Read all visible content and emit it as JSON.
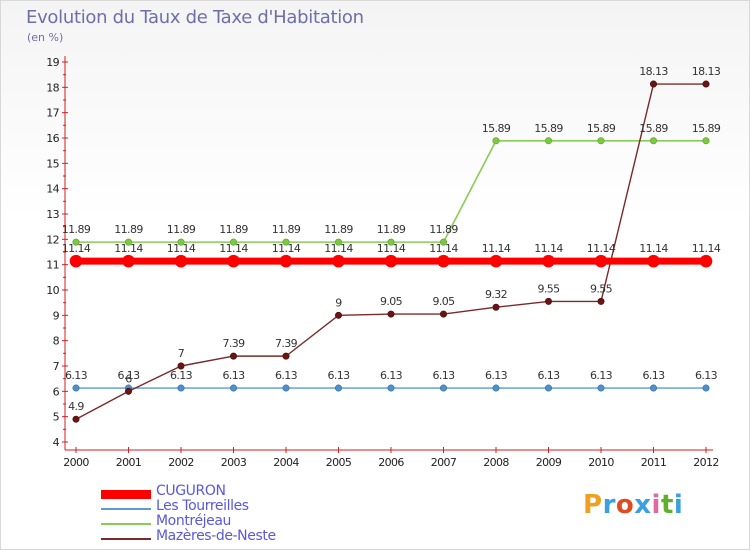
{
  "header": {
    "title": "Evolution du Taux de Taxe d'Habitation",
    "subtitle": "(en %)"
  },
  "logo": {
    "text": "Proxiti",
    "colors": [
      "#f0a020",
      "#3aa0e0",
      "#e04a20",
      "#3aa0e0",
      "#e06aa0",
      "#60b030",
      "#3aa0e0"
    ]
  },
  "chart_data": {
    "type": "line",
    "title": "Evolution du Taux de Taxe d'Habitation",
    "ylabel": "(en %)",
    "xlabel": "",
    "x": [
      "2000",
      "2001",
      "2002",
      "2003",
      "2004",
      "2005",
      "2006",
      "2007",
      "2008",
      "2009",
      "2010",
      "2011",
      "2012"
    ],
    "ylim": [
      4,
      19
    ],
    "yticks": [
      "4",
      "5",
      "6",
      "7",
      "8",
      "9",
      "10",
      "11",
      "12",
      "13",
      "14",
      "15",
      "16",
      "17",
      "18",
      "19"
    ],
    "grid": false,
    "legend_position": "bottom-left",
    "series": [
      {
        "name": "CUGURON",
        "color": "#ff0000",
        "values": [
          11.14,
          11.14,
          11.14,
          11.14,
          11.14,
          11.14,
          11.14,
          11.14,
          11.14,
          11.14,
          11.14,
          11.14,
          11.14
        ],
        "labels": [
          "11.14",
          "11.14",
          "11.14",
          "11.14",
          "11.14",
          "11.14",
          "11.14",
          "11.14",
          "11.14",
          "11.14",
          "11.14",
          "11.14",
          "11.14"
        ]
      },
      {
        "name": "Les Tourreilles",
        "color": "#5b9bd0",
        "values": [
          6.13,
          6.13,
          6.13,
          6.13,
          6.13,
          6.13,
          6.13,
          6.13,
          6.13,
          6.13,
          6.13,
          6.13,
          6.13
        ],
        "labels": [
          "6.13",
          "6.13",
          "6.13",
          "6.13",
          "6.13",
          "6.13",
          "6.13",
          "6.13",
          "6.13",
          "6.13",
          "6.13",
          "6.13",
          "6.13"
        ]
      },
      {
        "name": "Montréjeau",
        "color": "#88cc55",
        "values": [
          11.89,
          11.89,
          11.89,
          11.89,
          11.89,
          11.89,
          11.89,
          11.89,
          15.89,
          15.89,
          15.89,
          15.89,
          15.89
        ],
        "labels": [
          "11.89",
          "11.89",
          "11.89",
          "11.89",
          "11.89",
          "11.89",
          "11.89",
          "11.89",
          "15.89",
          "15.89",
          "15.89",
          "15.89",
          "15.89"
        ]
      },
      {
        "name": "Mazères-de-Neste",
        "color": "#7a2a2a",
        "values": [
          4.9,
          6.0,
          7.0,
          7.39,
          7.39,
          9.0,
          9.05,
          9.05,
          9.32,
          9.55,
          9.55,
          18.13,
          18.13
        ],
        "labels": [
          "4.9",
          "6",
          "7",
          "7.39",
          "7.39",
          "9",
          "9.05",
          "9.05",
          "9.32",
          "9.55",
          "9.55",
          "18.13",
          "18.13"
        ]
      }
    ]
  }
}
